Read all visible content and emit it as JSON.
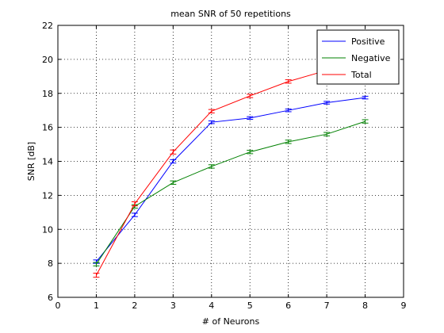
{
  "chart_data": {
    "type": "line",
    "title": "mean SNR of 50 repetitions",
    "xlabel": "# of Neurons",
    "ylabel": "SNR [dB]",
    "xlim": [
      0,
      9
    ],
    "ylim": [
      6,
      22
    ],
    "xticks": [
      0,
      1,
      2,
      3,
      4,
      5,
      6,
      7,
      8,
      9
    ],
    "yticks": [
      6,
      8,
      10,
      12,
      14,
      16,
      18,
      20,
      22
    ],
    "grid": true,
    "legend_position": "top-right",
    "x": [
      1,
      2,
      3,
      4,
      5,
      6,
      7,
      8
    ],
    "series": [
      {
        "name": "Positive",
        "color": "#0000ff",
        "values": [
          8.1,
          10.85,
          14.0,
          16.3,
          16.55,
          17.0,
          17.45,
          17.75
        ],
        "errors": [
          0.1,
          0.1,
          0.1,
          0.08,
          0.08,
          0.08,
          0.08,
          0.08
        ]
      },
      {
        "name": "Negative",
        "color": "#008000",
        "values": [
          7.95,
          11.35,
          12.75,
          13.7,
          14.55,
          15.15,
          15.6,
          16.35
        ],
        "errors": [
          0.1,
          0.1,
          0.1,
          0.1,
          0.1,
          0.1,
          0.1,
          0.1
        ]
      },
      {
        "name": "Total",
        "color": "#ff0000",
        "values": [
          7.3,
          11.5,
          14.55,
          16.95,
          17.85,
          18.7,
          19.35,
          20.0
        ],
        "errors": [
          0.12,
          0.12,
          0.12,
          0.1,
          0.1,
          0.1,
          0.1,
          0.1
        ]
      }
    ]
  }
}
